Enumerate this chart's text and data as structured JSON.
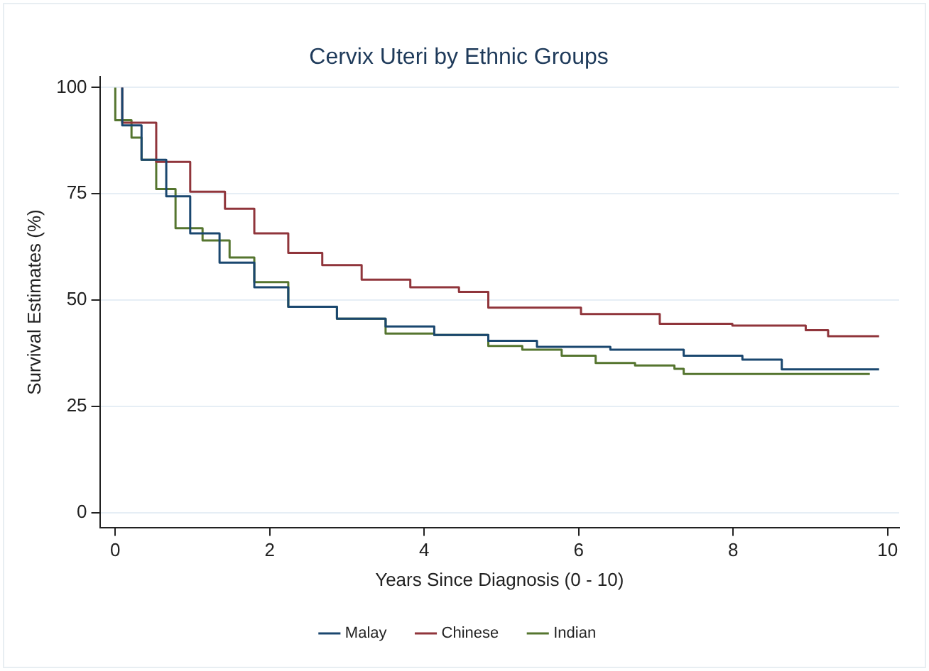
{
  "chart_data": {
    "type": "step",
    "title": "Cervix Uteri by Ethnic Groups",
    "xlabel": "Years Since Diagnosis (0 - 10)",
    "ylabel": "Survival Estimates (%)",
    "xlim": [
      -0.2,
      10.15
    ],
    "xticks": [
      0,
      2,
      4,
      6,
      8,
      10
    ],
    "ylim": [
      -3.5,
      102.5
    ],
    "yticks": [
      0,
      25,
      50,
      75,
      100
    ],
    "grid": "y",
    "legend": "bottom",
    "marker": "none",
    "series": [
      {
        "name": "Malay",
        "color": "#1a476f",
        "x": [
          0.09,
          0.34,
          0.66,
          0.97,
          1.35,
          1.8,
          2.24,
          2.87,
          3.5,
          4.13,
          4.83,
          5.46,
          6.41,
          7.36,
          8.12,
          8.63,
          9.61,
          9.89
        ],
        "values": [
          100,
          91.1,
          83,
          74.4,
          65.7,
          58.8,
          53,
          48.4,
          45.6,
          43.8,
          41.8,
          40.4,
          39,
          38.3,
          36.9,
          36,
          33.7,
          33.7
        ]
      },
      {
        "name": "Chinese",
        "color": "#90353b",
        "x": [
          0.09,
          0.53,
          0.97,
          1.42,
          1.8,
          2.24,
          2.68,
          3.19,
          3.82,
          4.45,
          4.83,
          6.03,
          7.05,
          7.99,
          8.94,
          9.23,
          9.64,
          9.89
        ],
        "values": [
          100,
          91.7,
          82.5,
          75.5,
          71.5,
          65.7,
          61.1,
          58.2,
          54.8,
          53,
          51.9,
          48.2,
          46.7,
          44.4,
          44,
          42.9,
          41.5,
          41.5
        ]
      },
      {
        "name": "Indian",
        "color": "#55752f",
        "x": [
          0,
          0.21,
          0.34,
          0.53,
          0.78,
          1.13,
          1.48,
          1.8,
          2.24,
          2.87,
          3.5,
          4.13,
          4.83,
          5.27,
          5.78,
          6.22,
          6.73,
          7.24,
          7.36,
          8.44,
          9.77
        ],
        "values": [
          100,
          92.3,
          88.2,
          83,
          76.1,
          66.9,
          64,
          60,
          54.2,
          48.4,
          45.6,
          42.1,
          41.8,
          39.2,
          38.3,
          36.9,
          35.2,
          34.6,
          33.8,
          32.6,
          32.6
        ]
      }
    ]
  }
}
